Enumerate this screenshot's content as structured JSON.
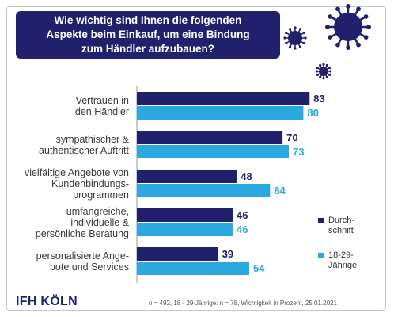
{
  "title": [
    "Wie wichtig sind Ihnen die folgenden",
    "Aspekte beim Einkauf, um eine Bindung",
    "zum Händler aufzubauen?"
  ],
  "colors": {
    "navy": "#21206c",
    "light": "#2aa8e0"
  },
  "chart_data": {
    "type": "bar",
    "orientation": "horizontal",
    "categories": [
      [
        "Vertrauen in",
        "den Händler"
      ],
      [
        "sympathischer &",
        "authentischer Auftritt"
      ],
      [
        "vielfältige Angebote von",
        "Kundenbindungs-",
        "programmen"
      ],
      [
        "umfangreiche,",
        "individuelle &",
        "persönliche Beratung"
      ],
      [
        "personalisierte Ange-",
        "bote und Services"
      ]
    ],
    "series": [
      {
        "name": [
          "Durch-",
          "schnitt"
        ],
        "color": "#21206c",
        "values": [
          83,
          70,
          48,
          46,
          39
        ]
      },
      {
        "name": [
          "18-29-",
          "Jährige"
        ],
        "color": "#2aa8e0",
        "values": [
          80,
          73,
          64,
          46,
          54
        ]
      }
    ],
    "xlim": [
      0,
      100
    ],
    "legend": "right"
  },
  "logo": "IFH KÖLN",
  "footnote": "n = 492, 18 - 29-Jährige: n = 78, Wichtigkeit in Prozent, 25.01.2021"
}
